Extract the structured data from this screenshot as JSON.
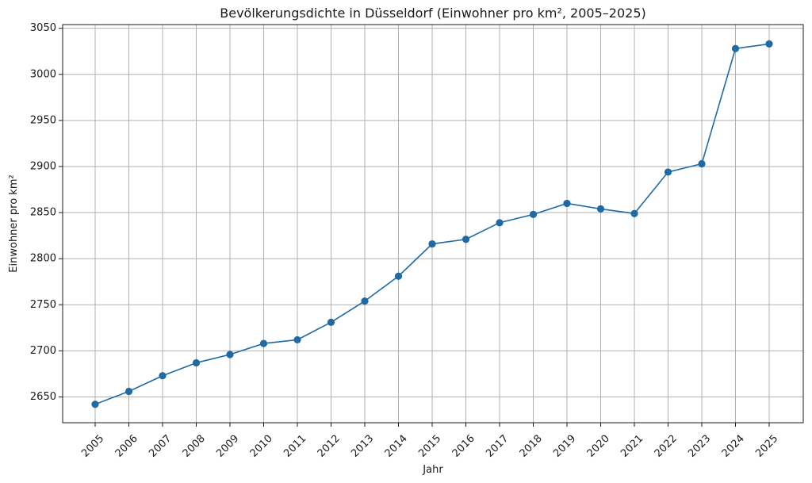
{
  "chart_data": {
    "type": "line",
    "title": "Bevölkerungsdichte in Düsseldorf (Einwohner pro km², 2005–2025)",
    "xlabel": "Jahr",
    "ylabel": "Einwohner pro km²",
    "categories": [
      "2005",
      "2006",
      "2007",
      "2008",
      "2009",
      "2010",
      "2011",
      "2012",
      "2013",
      "2014",
      "2015",
      "2016",
      "2017",
      "2018",
      "2019",
      "2020",
      "2021",
      "2022",
      "2023",
      "2024",
      "2025"
    ],
    "series": [
      {
        "values": [
          2642,
          2656,
          2673,
          2687,
          2696,
          2708,
          2712,
          2731,
          2754,
          2781,
          2816,
          2821,
          2839,
          2848,
          2860,
          2854,
          2849,
          2894,
          2903,
          3028,
          3033
        ],
        "color": "#1f6aa5"
      }
    ],
    "yticks": [
      2650,
      2700,
      2750,
      2800,
      2850,
      2900,
      2950,
      3000,
      3050
    ],
    "ylim": [
      2622,
      3054
    ],
    "grid": true,
    "legend": "none"
  }
}
